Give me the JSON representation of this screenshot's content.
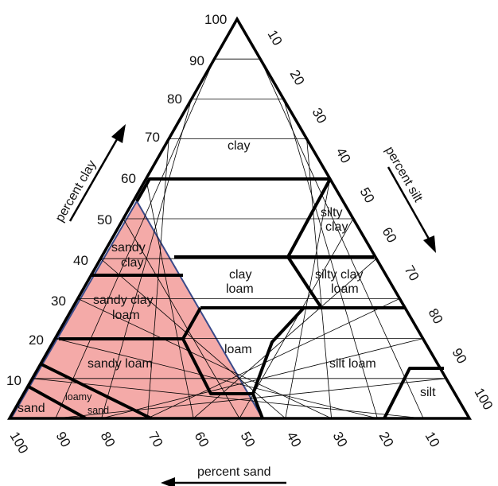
{
  "diagram": {
    "axes": {
      "clay": {
        "title": "percent clay",
        "ticks": [
          "10",
          "20",
          "30",
          "40",
          "50",
          "60",
          "70",
          "80",
          "90",
          "100"
        ]
      },
      "silt": {
        "title": "percent silt",
        "ticks": [
          "10",
          "20",
          "30",
          "40",
          "50",
          "60",
          "70",
          "80",
          "90",
          "100"
        ]
      },
      "sand": {
        "title": "percent sand",
        "ticks": [
          "100",
          "90",
          "80",
          "70",
          "60",
          "50",
          "40",
          "30",
          "20",
          "10"
        ]
      }
    },
    "highlight_color": "#f4aaa8",
    "line_color": "#000000",
    "zones": {
      "clay": "clay",
      "silty_clay": [
        "silty",
        "clay"
      ],
      "sandy_clay": [
        "sandy",
        "clay"
      ],
      "clay_loam": [
        "clay",
        "loam"
      ],
      "silty_clay_loam": [
        "silty clay",
        "loam"
      ],
      "sandy_clay_loam": [
        "sandy clay",
        "loam"
      ],
      "loam": "loam",
      "silt_loam": "silt loam",
      "sandy_loam": "sandy loam",
      "loamy_sand": [
        "loamy",
        "sand"
      ],
      "sand": "sand",
      "silt": "silt"
    }
  }
}
